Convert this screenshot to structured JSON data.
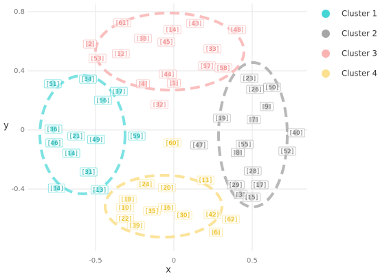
{
  "chart_data": {
    "type": "scatter",
    "x_label": "x",
    "y_label": "y",
    "xlim": [
      -0.934,
      0.851
    ],
    "ylim": [
      -0.819,
      0.856
    ],
    "xticks": [
      -0.5,
      0.0,
      0.5
    ],
    "yticks": [
      -0.4,
      0.0,
      0.4,
      0.8
    ],
    "grid": true,
    "legend": "right",
    "series": [
      {
        "name": "Cluster 1",
        "color": "#45d5d5",
        "text_color": "#1aa9a9",
        "labels": [
          "[51]",
          "[34]",
          "[37]",
          "[56]",
          "[36]",
          "[21]",
          "[46]",
          "[49]",
          "[59]",
          "[14]",
          "[31]",
          "[34]",
          "[13]"
        ],
        "x": [
          -0.772,
          -0.548,
          -0.351,
          -0.452,
          -0.768,
          -0.623,
          -0.763,
          -0.496,
          -0.237,
          -0.654,
          -0.544,
          -0.748,
          -0.474
        ],
        "y": [
          0.312,
          0.344,
          0.26,
          0.2,
          0.005,
          -0.042,
          -0.088,
          -0.065,
          -0.042,
          -0.158,
          -0.284,
          -0.395,
          -0.405
        ]
      },
      {
        "name": "Cluster 2",
        "color": "#a6a6a6",
        "text_color": "#666666",
        "labels": [
          "[23]",
          "[50]",
          "[26]",
          "[9]",
          "[19]",
          "[7]",
          "[40]",
          "[47]",
          "[55]",
          "[8]",
          "[52]",
          "[28]",
          "[29]",
          "[17]",
          "[3]",
          "[15]"
        ],
        "x": [
          0.482,
          0.627,
          0.518,
          0.592,
          0.307,
          0.509,
          0.781,
          0.162,
          0.452,
          0.408,
          0.724,
          0.504,
          0.395,
          0.548,
          0.425,
          0.496
        ],
        "y": [
          0.349,
          0.288,
          0.274,
          0.158,
          0.079,
          0.07,
          -0.019,
          -0.102,
          -0.098,
          -0.153,
          -0.144,
          -0.279,
          -0.372,
          -0.372,
          -0.437,
          -0.456
        ]
      },
      {
        "name": "Cluster 3",
        "color": "#f9b3b3",
        "text_color": "#ee8080",
        "labels": [
          "[61]",
          "[14]",
          "[43]",
          "[48]",
          "[38]",
          "[45]",
          "[2]",
          "[33]",
          "[12]",
          "[53]",
          "[57]",
          "[58]",
          "[44]",
          "[4]",
          "[1]",
          "[32]"
        ],
        "x": [
          -0.329,
          -0.009,
          0.136,
          0.404,
          -0.197,
          -0.048,
          -0.535,
          0.246,
          -0.338,
          -0.487,
          0.211,
          0.316,
          -0.039,
          -0.197,
          0.0,
          -0.092
        ],
        "y": [
          0.726,
          0.679,
          0.721,
          0.679,
          0.619,
          0.595,
          0.581,
          0.549,
          0.516,
          0.484,
          0.433,
          0.419,
          0.377,
          0.312,
          0.316,
          0.172
        ]
      },
      {
        "name": "Cluster 4",
        "color": "#fbe08f",
        "text_color": "#e6b800",
        "labels": [
          "[60]",
          "[11]",
          "[24]",
          "[20]",
          "[18]",
          "[10]",
          "[35]",
          "[16]",
          "[30]",
          "[42]",
          "[22]",
          "[39]",
          "[62]",
          "[6]"
        ],
        "x": [
          -0.009,
          0.202,
          -0.18,
          -0.044,
          -0.294,
          -0.311,
          -0.14,
          -0.044,
          0.061,
          0.246,
          -0.311,
          -0.241,
          0.364,
          0.268
        ],
        "y": [
          -0.088,
          -0.34,
          -0.367,
          -0.391,
          -0.47,
          -0.526,
          -0.549,
          -0.526,
          -0.577,
          -0.572,
          -0.6,
          -0.647,
          -0.605,
          -0.693
        ]
      }
    ]
  }
}
